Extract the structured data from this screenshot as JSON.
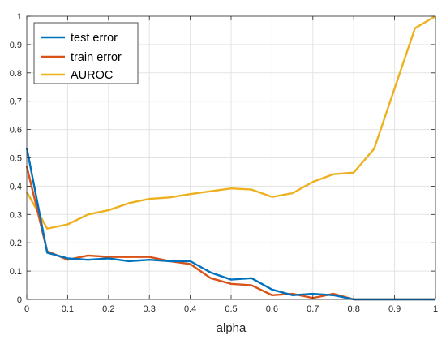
{
  "chart_data": {
    "type": "line",
    "title": "",
    "xlabel": "alpha",
    "ylabel": "",
    "xlim": [
      0,
      1
    ],
    "ylim": [
      0,
      1
    ],
    "grid": true,
    "legend_position": "top-left",
    "x": [
      0,
      0.05,
      0.1,
      0.15,
      0.2,
      0.25,
      0.3,
      0.35,
      0.4,
      0.45,
      0.5,
      0.55,
      0.6,
      0.65,
      0.7,
      0.75,
      0.8,
      0.85,
      0.9,
      0.95,
      1.0
    ],
    "x_ticks": [
      "0",
      "0.1",
      "0.2",
      "0.3",
      "0.4",
      "0.5",
      "0.6",
      "0.7",
      "0.8",
      "0.9",
      "1"
    ],
    "y_ticks": [
      "0",
      "0.1",
      "0.2",
      "0.3",
      "0.4",
      "0.5",
      "0.6",
      "0.7",
      "0.8",
      "0.9",
      "1"
    ],
    "series": [
      {
        "name": "test error",
        "color": "#0072BD",
        "values": [
          0.535,
          0.165,
          0.145,
          0.14,
          0.145,
          0.135,
          0.14,
          0.135,
          0.135,
          0.095,
          0.07,
          0.075,
          0.035,
          0.015,
          0.02,
          0.015,
          0.0,
          0.0,
          0.0,
          0.0,
          0.0
        ]
      },
      {
        "name": "train error",
        "color": "#D95319",
        "values": [
          0.47,
          0.17,
          0.14,
          0.155,
          0.15,
          0.15,
          0.15,
          0.135,
          0.125,
          0.075,
          0.055,
          0.05,
          0.015,
          0.02,
          0.005,
          0.02,
          0.0,
          0.0,
          0.0,
          0.0,
          0.0
        ]
      },
      {
        "name": "AUROC",
        "color": "#EDB120",
        "values": [
          0.38,
          0.25,
          0.265,
          0.3,
          0.315,
          0.34,
          0.355,
          0.36,
          0.372,
          0.382,
          0.392,
          0.388,
          0.362,
          0.375,
          0.415,
          0.442,
          0.448,
          0.532,
          0.745,
          0.958,
          1.0
        ]
      }
    ]
  }
}
